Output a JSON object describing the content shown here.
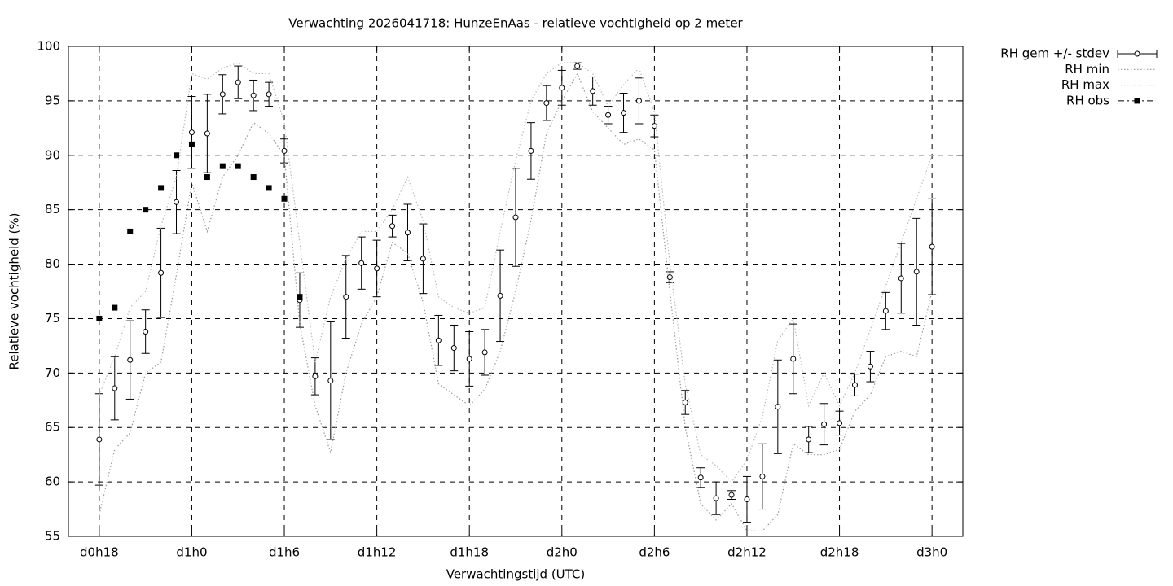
{
  "chart_data": {
    "type": "line",
    "title": "Verwachting 2026041718: HunzeEnAas - relatieve vochtigheid op 2 meter",
    "xlabel": "Verwachtingstijd (UTC)",
    "ylabel": "Relatieve vochtigheid (%)",
    "x": [
      18,
      19,
      20,
      21,
      22,
      23,
      24,
      25,
      26,
      27,
      28,
      29,
      30,
      31,
      32,
      33,
      34,
      35,
      36,
      37,
      38,
      39,
      40,
      41,
      42,
      43,
      44,
      45,
      46,
      47,
      48,
      49,
      50,
      51,
      52,
      53,
      54,
      55,
      56,
      57,
      58,
      59,
      60,
      61,
      62,
      63,
      64,
      65,
      66,
      67,
      68,
      69,
      70,
      71,
      72
    ],
    "xlim": [
      16,
      74
    ],
    "xticks": [
      {
        "value": 18,
        "label": "d0h18"
      },
      {
        "value": 24,
        "label": "d1h0"
      },
      {
        "value": 30,
        "label": "d1h6"
      },
      {
        "value": 36,
        "label": "d1h12"
      },
      {
        "value": 42,
        "label": "d1h18"
      },
      {
        "value": 48,
        "label": "d2h0"
      },
      {
        "value": 54,
        "label": "d2h6"
      },
      {
        "value": 60,
        "label": "d2h12"
      },
      {
        "value": 66,
        "label": "d2h18"
      },
      {
        "value": 72,
        "label": "d3h0"
      }
    ],
    "ylim": [
      55,
      100
    ],
    "yticks": [
      55,
      60,
      65,
      70,
      75,
      80,
      85,
      90,
      95,
      100
    ],
    "grid": true,
    "legend": "outside-right-top",
    "series": [
      {
        "name": "RH gem +/- stdev",
        "style": "errorbars",
        "color": "#000000",
        "values": [
          63.9,
          68.6,
          71.2,
          73.8,
          79.2,
          85.7,
          92.1,
          92.0,
          95.6,
          96.7,
          95.5,
          95.6,
          90.4,
          76.7,
          69.7,
          69.3,
          77.0,
          80.1,
          79.6,
          83.5,
          82.9,
          80.5,
          73.0,
          72.3,
          71.3,
          71.9,
          77.1,
          84.3,
          90.4,
          94.8,
          96.2,
          98.2,
          95.9,
          93.7,
          93.9,
          95.0,
          92.7,
          78.8,
          67.3,
          60.4,
          58.5,
          58.8,
          58.4,
          60.5,
          66.9,
          71.3,
          63.9,
          65.3,
          65.4,
          68.9,
          70.6,
          75.7,
          78.7,
          79.3,
          81.6
        ],
        "errors": [
          4.2,
          2.9,
          3.6,
          2.0,
          4.1,
          2.9,
          3.3,
          3.6,
          1.8,
          1.5,
          1.4,
          1.1,
          1.1,
          2.5,
          1.7,
          5.4,
          3.8,
          2.4,
          2.6,
          1.0,
          2.6,
          3.2,
          2.3,
          2.1,
          2.5,
          2.1,
          4.2,
          4.5,
          2.6,
          1.6,
          1.6,
          0.3,
          1.3,
          0.8,
          1.8,
          2.1,
          1.0,
          0.5,
          1.1,
          0.9,
          1.5,
          0.4,
          2.1,
          3.0,
          4.3,
          3.2,
          1.2,
          1.9,
          1.1,
          1.0,
          1.4,
          1.7,
          3.2,
          4.9,
          4.4
        ]
      },
      {
        "name": "RH min",
        "style": "dotted",
        "color": "#999999",
        "values": [
          57,
          63,
          64.5,
          70,
          71,
          79,
          87.5,
          83,
          88,
          90,
          93,
          92,
          90,
          74.5,
          67,
          62.7,
          70,
          74.5,
          77,
          82,
          81,
          76.5,
          69,
          68,
          67,
          68.5,
          72,
          77.5,
          84,
          92,
          95,
          97.5,
          94,
          92.5,
          91,
          91.5,
          90.5,
          77.5,
          65,
          58,
          56.5,
          58,
          55.5,
          55.5,
          57,
          63.5,
          62.5,
          62.5,
          63,
          66.5,
          68,
          71.5,
          72,
          71.5,
          77.5
        ]
      },
      {
        "name": "RH max",
        "style": "dotted",
        "color": "#bbbbbb",
        "values": [
          68,
          71.5,
          76,
          77.5,
          83.5,
          88,
          97.5,
          97,
          98,
          98.5,
          97.5,
          97.5,
          93,
          82,
          71,
          77,
          80.5,
          83,
          83,
          85,
          88,
          84,
          77,
          76,
          75.5,
          76,
          83,
          89.5,
          95,
          97.5,
          98.5,
          98.5,
          97.5,
          94.5,
          96.5,
          98,
          94,
          80,
          69,
          62.5,
          61.5,
          60,
          62,
          66,
          73,
          75,
          67,
          70,
          67,
          70,
          74,
          78,
          82,
          86,
          90
        ]
      },
      {
        "name": "RH obs",
        "style": "points",
        "color": "#000000",
        "values": [
          75,
          76,
          83,
          85,
          87,
          90,
          91,
          88,
          89,
          89,
          88,
          87,
          86,
          77,
          null,
          null,
          null,
          null,
          null,
          null,
          null,
          null,
          null,
          null,
          null,
          null,
          null,
          null,
          null,
          null,
          null,
          null,
          null,
          null,
          null,
          null,
          null,
          null,
          null,
          null,
          null,
          null,
          null,
          null,
          null,
          null,
          null,
          null,
          null,
          null,
          null,
          null,
          null,
          null,
          null
        ]
      }
    ]
  }
}
